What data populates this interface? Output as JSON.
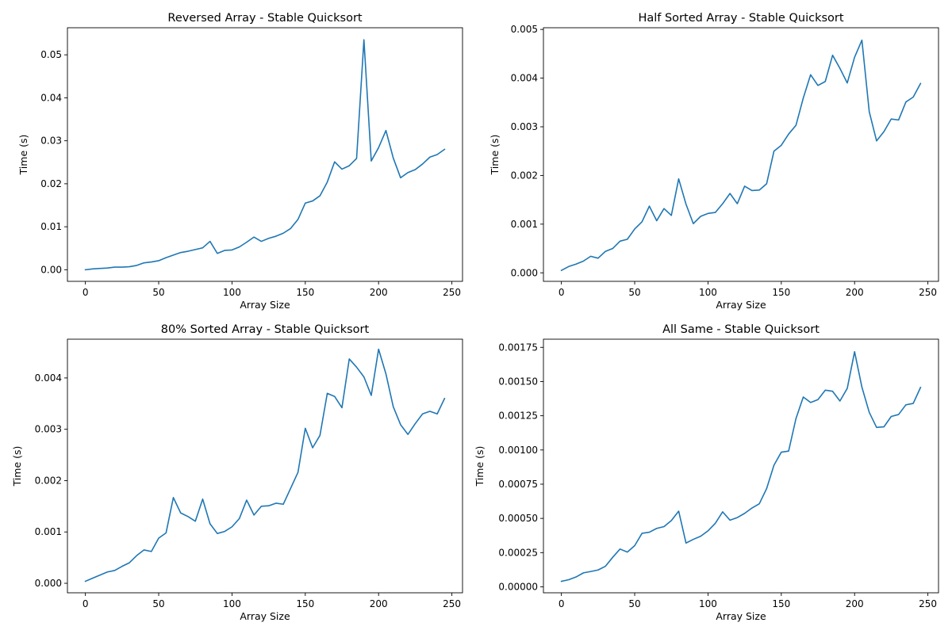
{
  "accent_color": "#1f77b4",
  "chart_data": [
    {
      "type": "line",
      "title": "Reversed Array - Stable Quicksort",
      "xlabel": "Array Size",
      "ylabel": "Time (s)",
      "xlim": [
        -12.25,
        257.25
      ],
      "ylim": [
        -0.0027,
        0.0563
      ],
      "xticks": [
        0,
        50,
        100,
        150,
        200,
        250
      ],
      "xtick_labels": [
        "0",
        "50",
        "100",
        "150",
        "200",
        "250"
      ],
      "yticks": [
        0,
        0.01,
        0.02,
        0.03,
        0.04,
        0.05
      ],
      "ytick_labels": [
        "0.00",
        "0.01",
        "0.02",
        "0.03",
        "0.04",
        "0.05"
      ],
      "grid": false,
      "series": [
        {
          "color": "#1f77b4",
          "x": [
            0,
            5,
            10,
            15,
            20,
            25,
            30,
            35,
            40,
            45,
            50,
            55,
            60,
            65,
            70,
            75,
            80,
            85,
            90,
            95,
            100,
            105,
            110,
            115,
            120,
            125,
            130,
            135,
            140,
            145,
            150,
            155,
            160,
            165,
            170,
            175,
            180,
            185,
            190,
            195,
            200,
            205,
            210,
            215,
            220,
            225,
            230,
            235,
            240,
            245
          ],
          "y": [
            0.0,
            0.0002,
            0.0003,
            0.0004,
            0.0006,
            0.0006,
            0.0007,
            0.001,
            0.0016,
            0.0018,
            0.0021,
            0.0028,
            0.0034,
            0.004,
            0.0043,
            0.0047,
            0.0051,
            0.0066,
            0.0038,
            0.0045,
            0.0046,
            0.0053,
            0.0064,
            0.0076,
            0.0066,
            0.0073,
            0.0078,
            0.0085,
            0.0096,
            0.0117,
            0.0155,
            0.016,
            0.0172,
            0.0204,
            0.0251,
            0.0234,
            0.0242,
            0.0259,
            0.0535,
            0.0253,
            0.0284,
            0.0324,
            0.026,
            0.0214,
            0.0226,
            0.0233,
            0.0246,
            0.0262,
            0.0268,
            0.028
          ]
        }
      ]
    },
    {
      "type": "line",
      "title": "Half Sorted Array - Stable Quicksort",
      "xlabel": "Array Size",
      "ylabel": "Time (s)",
      "xlim": [
        -12.25,
        257.25
      ],
      "ylim": [
        -0.000175,
        0.005035
      ],
      "xticks": [
        0,
        50,
        100,
        150,
        200,
        250
      ],
      "xtick_labels": [
        "0",
        "50",
        "100",
        "150",
        "200",
        "250"
      ],
      "yticks": [
        0,
        0.001,
        0.002,
        0.003,
        0.004,
        0.005
      ],
      "ytick_labels": [
        "0.000",
        "0.001",
        "0.002",
        "0.003",
        "0.004",
        "0.005"
      ],
      "grid": false,
      "series": [
        {
          "color": "#1f77b4",
          "x": [
            0,
            5,
            10,
            15,
            20,
            25,
            30,
            35,
            40,
            45,
            50,
            55,
            60,
            65,
            70,
            75,
            80,
            85,
            90,
            95,
            100,
            105,
            110,
            115,
            120,
            125,
            130,
            135,
            140,
            145,
            150,
            155,
            160,
            165,
            170,
            175,
            180,
            185,
            190,
            195,
            200,
            205,
            210,
            215,
            220,
            225,
            230,
            235,
            240,
            245
          ],
          "y": [
            5e-05,
            0.00013,
            0.00018,
            0.00024,
            0.00034,
            0.0003,
            0.00044,
            0.0005,
            0.00065,
            0.00069,
            0.0009,
            0.00105,
            0.00137,
            0.00107,
            0.00132,
            0.00118,
            0.00193,
            0.00141,
            0.00101,
            0.00116,
            0.00122,
            0.00124,
            0.00142,
            0.00163,
            0.00142,
            0.00178,
            0.00169,
            0.0017,
            0.00183,
            0.0025,
            0.00262,
            0.00285,
            0.00303,
            0.00359,
            0.00407,
            0.00385,
            0.00393,
            0.00447,
            0.0042,
            0.0039,
            0.00443,
            0.00478,
            0.00331,
            0.00271,
            0.0029,
            0.00316,
            0.00314,
            0.00351,
            0.00361,
            0.00389
          ]
        }
      ]
    },
    {
      "type": "line",
      "title": "80% Sorted Array - Stable Quicksort",
      "xlabel": "Array Size",
      "ylabel": "Time (s)",
      "xlim": [
        -12.25,
        257.25
      ],
      "ylim": [
        -0.000185,
        0.004755
      ],
      "xticks": [
        0,
        50,
        100,
        150,
        200,
        250
      ],
      "xtick_labels": [
        "0",
        "50",
        "100",
        "150",
        "200",
        "250"
      ],
      "yticks": [
        0,
        0.001,
        0.002,
        0.003,
        0.004
      ],
      "ytick_labels": [
        "0.000",
        "0.001",
        "0.002",
        "0.003",
        "0.004"
      ],
      "grid": false,
      "series": [
        {
          "color": "#1f77b4",
          "x": [
            0,
            5,
            10,
            15,
            20,
            25,
            30,
            35,
            40,
            45,
            50,
            55,
            60,
            65,
            70,
            75,
            80,
            85,
            90,
            95,
            100,
            105,
            110,
            115,
            120,
            125,
            130,
            135,
            140,
            145,
            150,
            155,
            160,
            165,
            170,
            175,
            180,
            185,
            190,
            195,
            200,
            205,
            210,
            215,
            220,
            225,
            230,
            235,
            240,
            245
          ],
          "y": [
            4e-05,
            0.0001,
            0.00016,
            0.00022,
            0.00025,
            0.00033,
            0.0004,
            0.00054,
            0.00065,
            0.00062,
            0.00088,
            0.00098,
            0.00167,
            0.00137,
            0.0013,
            0.00121,
            0.00164,
            0.00116,
            0.00097,
            0.00101,
            0.0011,
            0.00126,
            0.00162,
            0.00133,
            0.0015,
            0.00151,
            0.00156,
            0.00154,
            0.00185,
            0.00216,
            0.00302,
            0.00264,
            0.00288,
            0.0037,
            0.00364,
            0.00342,
            0.00437,
            0.00421,
            0.00402,
            0.00366,
            0.00456,
            0.00408,
            0.00344,
            0.00309,
            0.0029,
            0.00311,
            0.0033,
            0.00335,
            0.0033,
            0.0036
          ]
        }
      ]
    },
    {
      "type": "line",
      "title": "All Same - Stable Quicksort",
      "xlabel": "Array Size",
      "ylabel": "Time (s)",
      "xlim": [
        -12.25,
        257.25
      ],
      "ylim": [
        -4.35e-05,
        0.0018095
      ],
      "xticks": [
        0,
        50,
        100,
        150,
        200,
        250
      ],
      "xtick_labels": [
        "0",
        "50",
        "100",
        "150",
        "200",
        "250"
      ],
      "yticks": [
        0,
        0.00025,
        0.0005,
        0.00075,
        0.001,
        0.00125,
        0.0015,
        0.00175
      ],
      "ytick_labels": [
        "0.00000",
        "0.00025",
        "0.00050",
        "0.00075",
        "0.00100",
        "0.00125",
        "0.00150",
        "0.00175"
      ],
      "grid": false,
      "series": [
        {
          "color": "#1f77b4",
          "x": [
            0,
            5,
            10,
            15,
            20,
            25,
            30,
            35,
            40,
            45,
            50,
            55,
            60,
            65,
            70,
            75,
            80,
            85,
            90,
            95,
            100,
            105,
            110,
            115,
            120,
            125,
            130,
            135,
            140,
            145,
            150,
            155,
            160,
            165,
            170,
            175,
            180,
            185,
            190,
            195,
            200,
            205,
            210,
            215,
            220,
            225,
            230,
            235,
            240,
            245
          ],
          "y": [
            4e-05,
            5.2e-05,
            7.2e-05,
            0.000102,
            0.000112,
            0.000123,
            0.00015,
            0.000216,
            0.000276,
            0.000254,
            0.000301,
            0.000391,
            0.000399,
            0.000427,
            0.00044,
            0.000484,
            0.000553,
            0.00032,
            0.000347,
            0.00037,
            0.000409,
            0.000464,
            0.000548,
            0.000487,
            0.000506,
            0.000537,
            0.000576,
            0.000607,
            0.000718,
            0.000889,
            0.000984,
            0.000992,
            0.001229,
            0.001387,
            0.001347,
            0.001368,
            0.001437,
            0.001429,
            0.001358,
            0.00145,
            0.001718,
            0.001459,
            0.001275,
            0.001165,
            0.001169,
            0.001245,
            0.001259,
            0.00133,
            0.00134,
            0.001457
          ]
        }
      ]
    }
  ]
}
